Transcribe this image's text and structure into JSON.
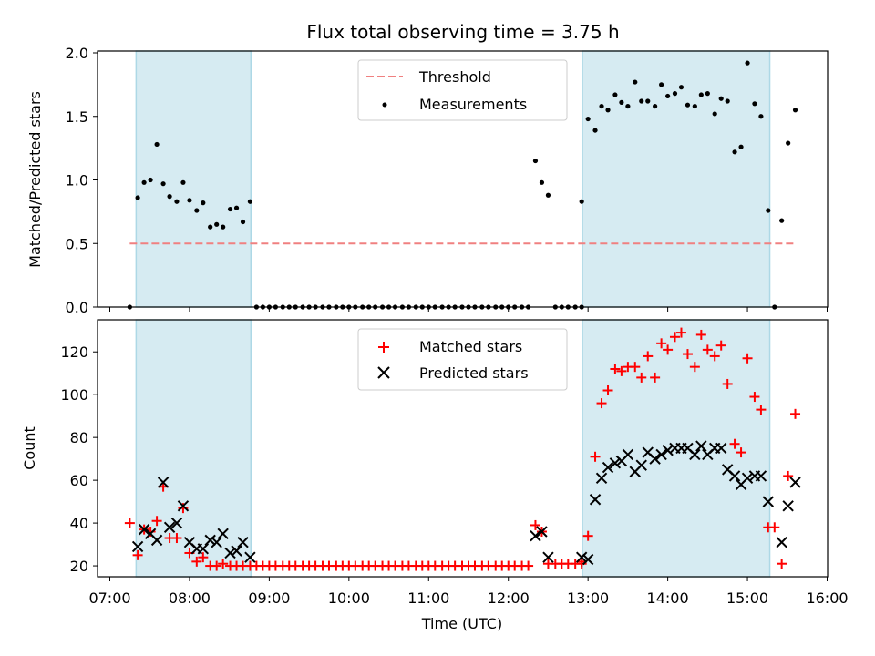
{
  "title": "Flux total observing time = 3.75 h",
  "colors": {
    "shade": "#add8e6",
    "threshold": "#f08080",
    "matched": "#ff0000",
    "predicted": "#000000",
    "measurement": "#000000"
  },
  "top_panel": {
    "ylabel": "Matched/Predicted stars",
    "yticks": [
      "0.0",
      "0.5",
      "1.0",
      "1.5",
      "2.0"
    ],
    "legend": {
      "threshold": "Threshold",
      "measurements": "Measurements"
    }
  },
  "bottom_panel": {
    "ylabel": "Count",
    "xlabel": "Time (UTC)",
    "yticks": [
      "20",
      "40",
      "60",
      "80",
      "100",
      "120"
    ],
    "xticks": [
      "07:00",
      "08:00",
      "09:00",
      "10:00",
      "11:00",
      "12:00",
      "13:00",
      "14:00",
      "15:00",
      "16:00"
    ],
    "legend": {
      "matched": "Matched stars",
      "predicted": "Predicted stars"
    }
  },
  "chart_data": [
    {
      "type": "scatter",
      "title": "Flux total observing time = 3.75 h",
      "xlabel": "",
      "ylabel": "Matched/Predicted stars",
      "x_unit": "hours UTC",
      "xlim": [
        7.0,
        16.0
      ],
      "ylim": [
        0.0,
        2.0
      ],
      "shaded_intervals": [
        [
          7.33,
          8.77
        ],
        [
          12.93,
          15.28
        ]
      ],
      "threshold": {
        "name": "Threshold",
        "y": 0.5,
        "x_range": [
          7.25,
          15.6
        ]
      },
      "series": [
        {
          "name": "Measurements",
          "x": [
            7.25,
            7.35,
            7.43,
            7.51,
            7.59,
            7.67,
            7.75,
            7.84,
            7.92,
            8.0,
            8.09,
            8.17,
            8.26,
            8.34,
            8.42,
            8.51,
            8.59,
            8.67,
            8.76,
            8.84,
            8.92,
            9.0,
            9.08,
            9.17,
            9.25,
            9.33,
            9.42,
            9.5,
            9.58,
            9.67,
            9.75,
            9.84,
            9.92,
            10.0,
            10.08,
            10.17,
            10.25,
            10.33,
            10.42,
            10.5,
            10.58,
            10.67,
            10.75,
            10.84,
            10.92,
            11.0,
            11.08,
            11.17,
            11.25,
            11.33,
            11.42,
            11.5,
            11.58,
            11.67,
            11.75,
            11.84,
            11.92,
            12.0,
            12.08,
            12.17,
            12.25,
            12.34,
            12.42,
            12.5,
            12.59,
            12.67,
            12.75,
            12.84,
            12.92,
            12.92,
            13.0,
            13.09,
            13.17,
            13.25,
            13.34,
            13.42,
            13.5,
            13.59,
            13.67,
            13.75,
            13.84,
            13.92,
            14.0,
            14.09,
            14.17,
            14.25,
            14.34,
            14.42,
            14.5,
            14.59,
            14.67,
            14.75,
            14.84,
            14.92,
            15.0,
            15.09,
            15.17,
            15.26,
            15.34,
            15.43,
            15.51,
            15.6
          ],
          "y": [
            0.0,
            0.86,
            0.98,
            1.0,
            1.28,
            0.97,
            0.87,
            0.83,
            0.98,
            0.84,
            0.76,
            0.82,
            0.63,
            0.65,
            0.63,
            0.77,
            0.78,
            0.67,
            0.83,
            0.0,
            0.0,
            0.0,
            0.0,
            0.0,
            0.0,
            0.0,
            0.0,
            0.0,
            0.0,
            0.0,
            0.0,
            0.0,
            0.0,
            0.0,
            0.0,
            0.0,
            0.0,
            0.0,
            0.0,
            0.0,
            0.0,
            0.0,
            0.0,
            0.0,
            0.0,
            0.0,
            0.0,
            0.0,
            0.0,
            0.0,
            0.0,
            0.0,
            0.0,
            0.0,
            0.0,
            0.0,
            0.0,
            0.0,
            0.0,
            0.0,
            0.0,
            1.15,
            0.98,
            0.88,
            0.0,
            0.0,
            0.0,
            0.0,
            0.0,
            0.83,
            1.48,
            1.39,
            1.58,
            1.55,
            1.67,
            1.61,
            1.58,
            1.77,
            1.62,
            1.62,
            1.58,
            1.75,
            1.66,
            1.68,
            1.73,
            1.59,
            1.58,
            1.67,
            1.68,
            1.52,
            1.64,
            1.62,
            1.22,
            1.26,
            1.92,
            1.6,
            1.5,
            0.76,
            0.0,
            0.68,
            1.29,
            1.55
          ]
        }
      ]
    },
    {
      "type": "scatter",
      "title": "",
      "xlabel": "Time (UTC)",
      "ylabel": "Count",
      "x_unit": "hours UTC",
      "xlim": [
        7.0,
        16.0
      ],
      "ylim": [
        15,
        135
      ],
      "shaded_intervals": [
        [
          7.33,
          8.77
        ],
        [
          12.93,
          15.28
        ]
      ],
      "series": [
        {
          "name": "Matched stars",
          "marker": "plus",
          "x": [
            7.25,
            7.35,
            7.43,
            7.51,
            7.59,
            7.67,
            7.75,
            7.84,
            7.92,
            8.0,
            8.09,
            8.17,
            8.26,
            8.34,
            8.42,
            8.51,
            8.59,
            8.67,
            8.76,
            8.84,
            8.92,
            9.0,
            9.08,
            9.17,
            9.25,
            9.33,
            9.42,
            9.5,
            9.58,
            9.67,
            9.75,
            9.84,
            9.92,
            10.0,
            10.08,
            10.17,
            10.25,
            10.33,
            10.42,
            10.5,
            10.58,
            10.67,
            10.75,
            10.84,
            10.92,
            11.0,
            11.08,
            11.17,
            11.25,
            11.33,
            11.42,
            11.5,
            11.58,
            11.67,
            11.75,
            11.84,
            11.92,
            12.0,
            12.08,
            12.17,
            12.25,
            12.34,
            12.42,
            12.5,
            12.59,
            12.67,
            12.75,
            12.84,
            12.92,
            12.92,
            13.0,
            13.09,
            13.17,
            13.25,
            13.34,
            13.42,
            13.5,
            13.59,
            13.67,
            13.75,
            13.84,
            13.92,
            14.0,
            14.09,
            14.17,
            14.25,
            14.34,
            14.42,
            14.5,
            14.59,
            14.67,
            14.75,
            14.84,
            14.92,
            15.0,
            15.09,
            15.17,
            15.26,
            15.34,
            15.43,
            15.51,
            15.6
          ],
          "y": [
            40,
            25,
            37,
            36,
            41,
            57,
            33,
            33,
            47,
            26,
            22,
            24,
            20,
            20,
            21,
            20,
            20,
            20,
            20,
            20,
            20,
            20,
            20,
            20,
            20,
            20,
            20,
            20,
            20,
            20,
            20,
            20,
            20,
            20,
            20,
            20,
            20,
            20,
            20,
            20,
            20,
            20,
            20,
            20,
            20,
            20,
            20,
            20,
            20,
            20,
            20,
            20,
            20,
            20,
            20,
            20,
            20,
            20,
            20,
            20,
            20,
            39,
            36,
            21,
            21,
            21,
            21,
            21,
            21,
            22,
            34,
            71,
            96,
            102,
            112,
            111,
            113,
            113,
            108,
            118,
            108,
            124,
            121,
            127,
            129,
            119,
            113,
            128,
            121,
            118,
            123,
            105,
            77,
            73,
            117,
            99,
            93,
            38,
            38,
            21,
            62,
            91
          ]
        },
        {
          "name": "Predicted stars",
          "marker": "x",
          "x": [
            7.35,
            7.43,
            7.51,
            7.59,
            7.67,
            7.75,
            7.84,
            7.92,
            8.0,
            8.09,
            8.17,
            8.26,
            8.34,
            8.42,
            8.51,
            8.59,
            8.67,
            8.76,
            12.34,
            12.42,
            12.5,
            12.92,
            13.0,
            13.09,
            13.17,
            13.25,
            13.34,
            13.42,
            13.5,
            13.59,
            13.67,
            13.75,
            13.84,
            13.92,
            14.0,
            14.09,
            14.17,
            14.25,
            14.34,
            14.42,
            14.5,
            14.59,
            14.67,
            14.75,
            14.84,
            14.92,
            15.0,
            15.09,
            15.17,
            15.26,
            15.43,
            15.51,
            15.6
          ],
          "y": [
            29,
            37,
            35,
            32,
            59,
            38,
            40,
            48,
            31,
            28,
            28,
            32,
            31,
            35,
            26,
            27,
            31,
            24,
            34,
            36,
            24,
            24,
            23,
            51,
            61,
            66,
            68,
            69,
            72,
            64,
            67,
            73,
            70,
            72,
            74,
            75,
            75,
            75,
            72,
            76,
            72,
            75,
            75,
            65,
            62,
            58,
            61,
            62,
            62,
            50,
            31,
            48,
            59
          ]
        }
      ]
    }
  ]
}
